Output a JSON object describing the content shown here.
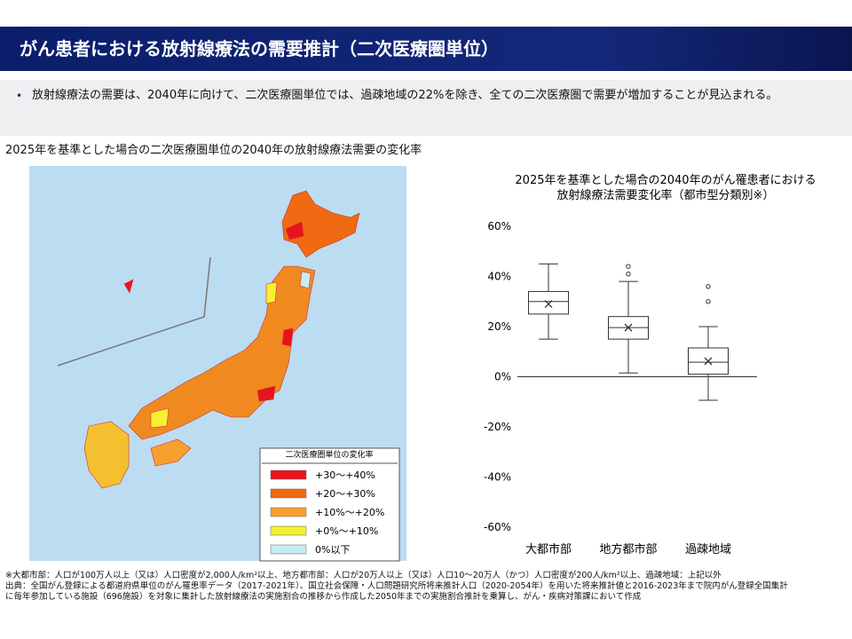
{
  "header": {
    "title": "がん患者における放射線療法の需要推計（二次医療圏単位）"
  },
  "bullet": "放射線療法の需要は、2040年に向けて、二次医療圏単位では、過疎地域の22%を除き、全ての二次医療圏で需要が増加することが見込まれる。",
  "map": {
    "title": "2025年を基準とした場合の二次医療圏単位の2040年の放射線療法需要の変化率",
    "legend_title": "二次医療圏単位の変化率",
    "legend": [
      {
        "label": "+30～+40%",
        "color": "#e8141c"
      },
      {
        "label": "+20～+30%",
        "color": "#ef6a12"
      },
      {
        "label": "+10%～+20%",
        "color": "#f7a030"
      },
      {
        "label": "+0%～+10%",
        "color": "#f5f032"
      },
      {
        "label": "0%以下",
        "color": "#c6ecf4"
      }
    ]
  },
  "chart_data": {
    "type": "box",
    "title": "2025年を基準とした場合の2040年のがん罹患者における",
    "subtitle": "放射線療法需要変化率（都市型分類別※）",
    "categories": [
      "大都市部",
      "地方都市部",
      "過疎地域"
    ],
    "series": [
      {
        "whisker_low": 15,
        "q1": 25,
        "median": 30,
        "q3": 34,
        "whisker_high": 45,
        "mean": 29,
        "outliers": []
      },
      {
        "whisker_low": 1.5,
        "q1": 15,
        "median": 19.6,
        "q3": 24,
        "whisker_high": 38,
        "mean": 19.6,
        "outliers": [
          41,
          44
        ]
      },
      {
        "whisker_low": -9.4,
        "q1": 1,
        "median": 5.8,
        "q3": 11.5,
        "whisker_high": 20,
        "mean": 6.2,
        "outliers": [
          30,
          36
        ]
      }
    ],
    "ylim": [
      -60,
      60
    ],
    "yticks": [
      {
        "value": 60,
        "label": "60%"
      },
      {
        "value": 40,
        "label": "40%"
      },
      {
        "value": 20,
        "label": "20%"
      },
      {
        "value": 0,
        "label": "0%"
      },
      {
        "value": -20,
        "label": "-20%"
      },
      {
        "value": -40,
        "label": "-40%"
      },
      {
        "value": -60,
        "label": "-60%"
      }
    ],
    "color": "#333333"
  },
  "footer": [
    "※大都市部：人口が100万人以上（又は）人口密度が2,000人/km²以上、地方都市部：人口が20万人以上（又は）人口10～20万人（かつ）人口密度が200人/km²以上、過疎地域：上記以外",
    "出典：全国がん登録による都道府県単位のがん罹患率データ（2017-2021年）、国立社会保障・人口問題研究所将来推計人口（2020-2054年）を用いた将来推計値と2016-2023年まで院内がん登録全国集計",
    "に毎年参加している施設（696施設）を対象に集計した放射線療法の実施割合の推移から作成した2050年までの実施割合推計を乗算し、がん・疾病対策課において作成"
  ]
}
